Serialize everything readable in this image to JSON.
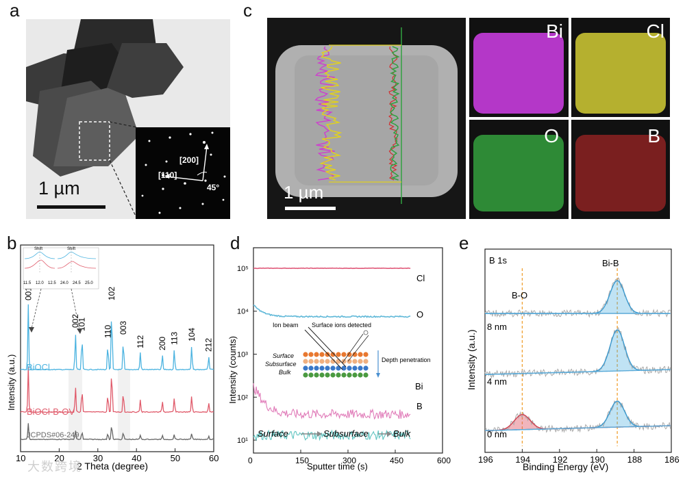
{
  "panels": {
    "a": {
      "letter": "a",
      "scale_bar": "1 µm",
      "saed": {
        "zone_200": "[200]",
        "zone_110": "[110]",
        "angle": "45°"
      }
    },
    "b": {
      "letter": "b",
      "xlabel": "2 Theta (degree)",
      "ylabel": "Intensity (a.u.)",
      "x_ticks": [
        "10",
        "20",
        "30",
        "40",
        "50",
        "60"
      ],
      "series_labels": [
        "BiOCl",
        "BiOCl-B-OV",
        "JCPDS#06-249"
      ],
      "peak_labels": [
        "001",
        "002",
        "101",
        "110",
        "102",
        "003",
        "112",
        "200",
        "113",
        "104",
        "212"
      ],
      "inset": {
        "shift_label": "Shift",
        "x_ticks": [
          "11.5",
          "12.0",
          "12.5",
          "24.0",
          "24.5",
          "25.0"
        ]
      }
    },
    "c": {
      "letter": "c",
      "scale_bar": "1 µm",
      "maps": [
        {
          "label": "Bi",
          "color": "#b437c8"
        },
        {
          "label": "Cl",
          "color": "#b5b02f"
        },
        {
          "label": "O",
          "color": "#2e8a36"
        },
        {
          "label": "B",
          "color": "#7a1f1f"
        }
      ]
    },
    "d": {
      "letter": "d",
      "xlabel": "Sputter time (s)",
      "ylabel": "Intensity (counts)",
      "x_ticks": [
        "0",
        "150",
        "300",
        "450",
        "600"
      ],
      "y_ticks": [
        "10¹",
        "10²",
        "10³",
        "10⁴",
        "10⁵"
      ],
      "series_labels": [
        "Cl",
        "O",
        "Bi",
        "B"
      ],
      "schematic": {
        "ion_beam": "Ion beam",
        "detected": "Surface ions detected",
        "surface": "Surface",
        "subsurface": "Subsurface",
        "bulk": "Bulk",
        "depth": "Depth penetration"
      },
      "axis_caption": [
        "Surface",
        "Subsurface",
        "Bulk"
      ]
    },
    "e": {
      "letter": "e",
      "title": "B 1s",
      "xlabel": "Binding Energy (eV)",
      "ylabel": "Intensity (a.u.)",
      "x_ticks": [
        "196",
        "194",
        "192",
        "190",
        "188",
        "186"
      ],
      "peak_labels": [
        "B-O",
        "Bi-B"
      ],
      "depth_labels": [
        "8 nm",
        "4 nm",
        "0 nm"
      ]
    }
  },
  "watermark": "大数跨境",
  "chart_data": [
    {
      "type": "line",
      "title": "",
      "xlabel": "2 Theta (degree)",
      "ylabel": "Intensity (a.u.)",
      "xlim": [
        10,
        60
      ],
      "series": [
        {
          "name": "BiOCl",
          "color": "#4bb3e0",
          "peaks_2theta": [
            12.0,
            24.2,
            25.9,
            32.6,
            33.6,
            36.6,
            41.0,
            46.7,
            49.8,
            54.3,
            58.7
          ]
        },
        {
          "name": "BiOCl-B-OV",
          "color": "#e05a6a",
          "peaks_2theta": [
            12.0,
            24.2,
            25.9,
            32.6,
            33.6,
            36.6,
            41.0,
            46.7,
            49.8,
            54.3,
            58.7
          ]
        },
        {
          "name": "JCPDS#06-249",
          "color": "#666666",
          "peaks_2theta": [
            12.0,
            24.2,
            25.9,
            32.6,
            33.6,
            36.6,
            41.0,
            46.7,
            49.8,
            54.3,
            58.7
          ]
        }
      ]
    },
    {
      "type": "line",
      "title": "",
      "xlabel": "Sputter time (s)",
      "ylabel": "Intensity (counts)",
      "xlim": [
        0,
        600
      ],
      "yscale": "log",
      "ylim": [
        5,
        300000
      ],
      "series": [
        {
          "name": "Cl",
          "color": "#e05a7a",
          "level": 100000
        },
        {
          "name": "O",
          "color": "#5fb8d8",
          "start": 14000,
          "level": 7500
        },
        {
          "name": "Bi",
          "color": "#e07ab8",
          "start": 180,
          "level": 40
        },
        {
          "name": "B",
          "color": "#5fc4c0",
          "level": 13
        }
      ],
      "x_end": 500
    },
    {
      "type": "line",
      "title": "B 1s",
      "xlabel": "Binding Energy (eV)",
      "ylabel": "Intensity (a.u.)",
      "xlim": [
        196,
        186
      ],
      "reference_lines": [
        {
          "label": "B-O",
          "x": 194.0
        },
        {
          "label": "Bi-B",
          "x": 188.9
        }
      ],
      "spectra": [
        {
          "depth": "8 nm",
          "peaks": [
            188.9
          ]
        },
        {
          "depth": "4 nm",
          "peaks": [
            188.9
          ]
        },
        {
          "depth": "0 nm",
          "peaks": [
            194.0,
            188.9
          ]
        }
      ]
    }
  ]
}
